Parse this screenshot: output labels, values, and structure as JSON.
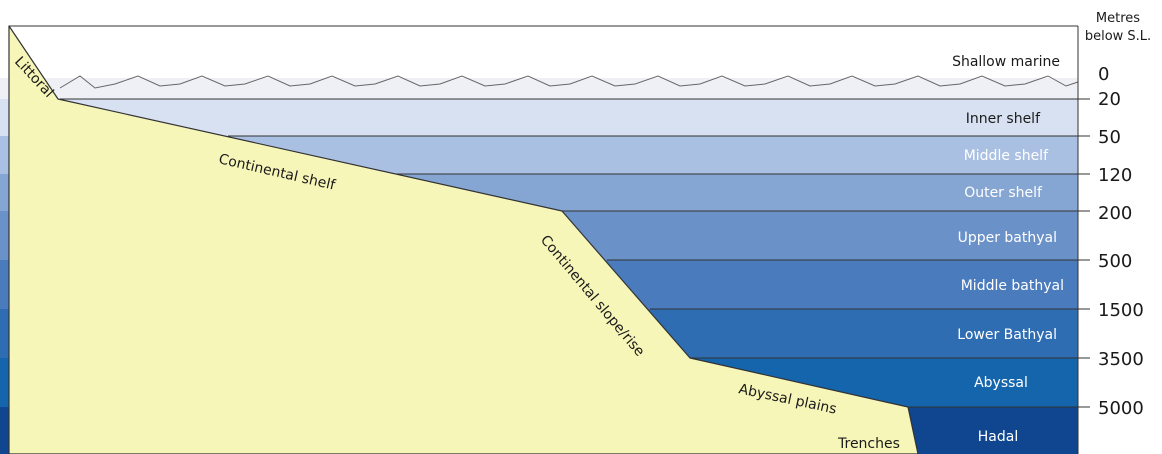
{
  "axis_title": {
    "line1": "Metres",
    "line2": "below S.L."
  },
  "zones": [
    {
      "name": "Shallow marine",
      "depth_top": "0",
      "color": "#eef0f6"
    },
    {
      "name": "Inner shelf",
      "depth_top": "20",
      "color": "#d7e1f1"
    },
    {
      "name": "Middle shelf",
      "depth_top": "50",
      "color": "#aac0e2"
    },
    {
      "name": "Outer shelf",
      "depth_top": "120",
      "color": "#85a6d3"
    },
    {
      "name": "Upper bathyal",
      "depth_top": "200",
      "color": "#6b91c9"
    },
    {
      "name": "Middle bathyal",
      "depth_top": "500",
      "color": "#4a7bbd"
    },
    {
      "name": "Lower Bathyal",
      "depth_top": "1500",
      "color": "#2f6db3"
    },
    {
      "name": "Abyssal",
      "depth_top": "3500",
      "color": "#1565ad"
    },
    {
      "name": "Hadal",
      "depth_top": "5000",
      "color": "#0f468f"
    }
  ],
  "landforms": [
    {
      "name": "Littoral"
    },
    {
      "name": "Continental shelf"
    },
    {
      "name": "Continental slope/rise"
    },
    {
      "name": "Abyssal plains"
    },
    {
      "name": "Trenches"
    }
  ],
  "colors": {
    "land": "#f7f6b9",
    "outline": "#333333",
    "text_dark": "#1a1a1a",
    "text_light": "#ffffff"
  }
}
